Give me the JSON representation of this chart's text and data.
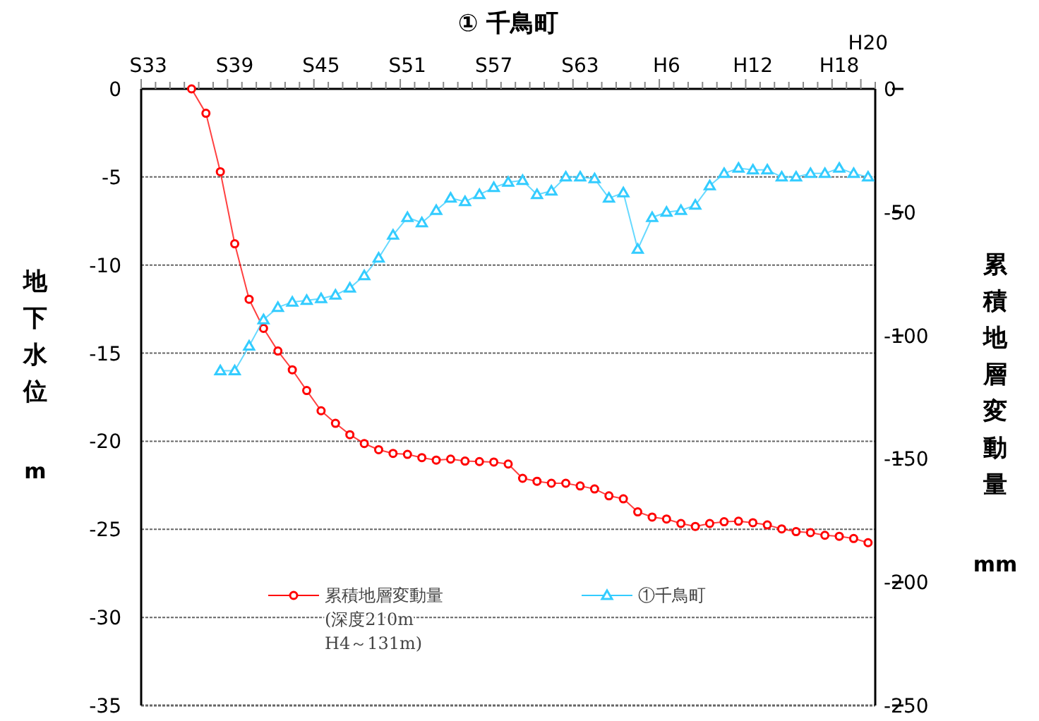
{
  "chart_data": {
    "type": "line",
    "title": "① 千鳥町",
    "ylabel": "地下水位 m",
    "y2label": "累積地層変動量 mm",
    "categories": [
      "S33",
      null,
      null,
      null,
      null,
      null,
      "S39",
      null,
      null,
      null,
      null,
      null,
      "S45",
      null,
      null,
      null,
      null,
      null,
      "S51",
      null,
      null,
      null,
      null,
      null,
      "S57",
      null,
      null,
      null,
      null,
      null,
      "S63",
      null,
      null,
      null,
      null,
      null,
      "H6",
      null,
      null,
      null,
      null,
      null,
      "H12",
      null,
      null,
      null,
      null,
      null,
      "H18",
      null,
      "H20"
    ],
    "ylim": [
      -35,
      0
    ],
    "yticks": [
      -35,
      -30,
      -25,
      -20,
      -15,
      -10,
      -5,
      0
    ],
    "y2lim": [
      -250,
      0
    ],
    "y2ticks": [
      -250,
      -200,
      -150,
      -100,
      -50,
      0
    ],
    "grid": "y",
    "legend": "bottom",
    "series": [
      {
        "name": "累積地層変動量\n(深度210m\nH4～131m)",
        "color": "#ff0000",
        "axis": "y2",
        "marker": "circle",
        "values": [
          null,
          null,
          null,
          0,
          -9.9,
          -33.6,
          -62.8,
          -85.3,
          -97.1,
          -106.3,
          -113.9,
          -122.3,
          -130.5,
          -135.6,
          -140.2,
          -143.8,
          -146.3,
          -147.8,
          -148.2,
          -149.5,
          -150.5,
          -150.1,
          -150.9,
          -151.1,
          -151.3,
          -152.1,
          -157.9,
          -159.1,
          -159.9,
          -159.9,
          -161.0,
          -162.2,
          -165.0,
          -166.2,
          -171.5,
          -173.6,
          -174.4,
          -176.2,
          -177.4,
          -176.2,
          -175.5,
          -175.3,
          -175.9,
          -176.8,
          -178.4,
          -179.5,
          -179.9,
          -181.0,
          -181.4,
          -182.3,
          -184.0
        ]
      },
      {
        "name": "①千鳥町",
        "color": "#33ccff",
        "marker": "triangle",
        "values": [
          null,
          null,
          null,
          null,
          null,
          -16.0,
          -16.0,
          -14.6,
          -13.1,
          -12.4,
          -12.1,
          -12.0,
          -11.9,
          -11.7,
          -11.3,
          -10.6,
          -9.6,
          -8.3,
          -7.3,
          -7.6,
          -6.9,
          -6.2,
          -6.4,
          -6.0,
          -5.6,
          -5.3,
          -5.2,
          -6.0,
          -5.8,
          -5.0,
          -5.0,
          -5.1,
          -6.2,
          -5.9,
          -9.1,
          -7.3,
          -7.0,
          -6.9,
          -6.6,
          -5.5,
          -4.8,
          -4.5,
          -4.6,
          -4.6,
          -5.0,
          -5.0,
          -4.8,
          -4.8,
          -4.5,
          -4.8,
          -5.0
        ]
      }
    ]
  }
}
